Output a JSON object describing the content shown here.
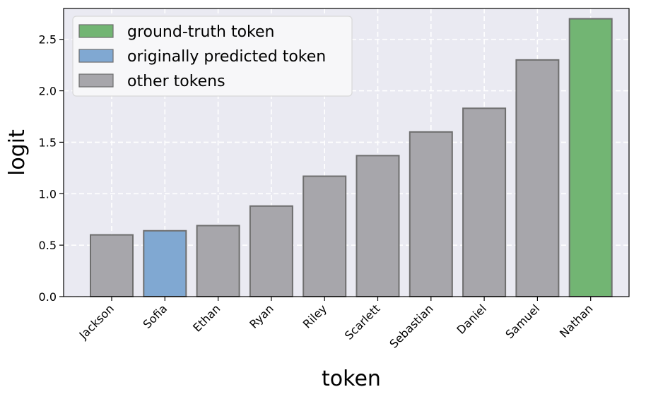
{
  "chart_data": {
    "type": "bar",
    "categories": [
      "Jackson",
      "Sofia",
      "Ethan",
      "Ryan",
      "Riley",
      "Scarlett",
      "Sebastian",
      "Daniel",
      "Samuel",
      "Nathan"
    ],
    "values": [
      0.6,
      0.64,
      0.69,
      0.88,
      1.17,
      1.37,
      1.6,
      1.83,
      2.3,
      2.7
    ],
    "bar_roles": [
      "other",
      "original",
      "other",
      "other",
      "other",
      "other",
      "other",
      "other",
      "other",
      "ground"
    ],
    "xlabel": "token",
    "ylabel": "logit",
    "ylim": [
      0,
      2.8
    ],
    "yticks": [
      "0.0",
      "0.5",
      "1.0",
      "1.5",
      "2.0",
      "2.5"
    ],
    "grid": true,
    "legend": {
      "placement": "top-left",
      "entries": [
        {
          "label": "ground-truth token",
          "role": "ground"
        },
        {
          "label": "originally predicted token",
          "role": "original"
        },
        {
          "label": "other tokens",
          "role": "other"
        }
      ]
    },
    "colors": {
      "ground": "#72b573",
      "original": "#80a8d2",
      "other": "#a7a6ab",
      "edge": "#6e6e6e",
      "plot_background": "#eaeaf2",
      "grid": "#ffffff"
    }
  }
}
